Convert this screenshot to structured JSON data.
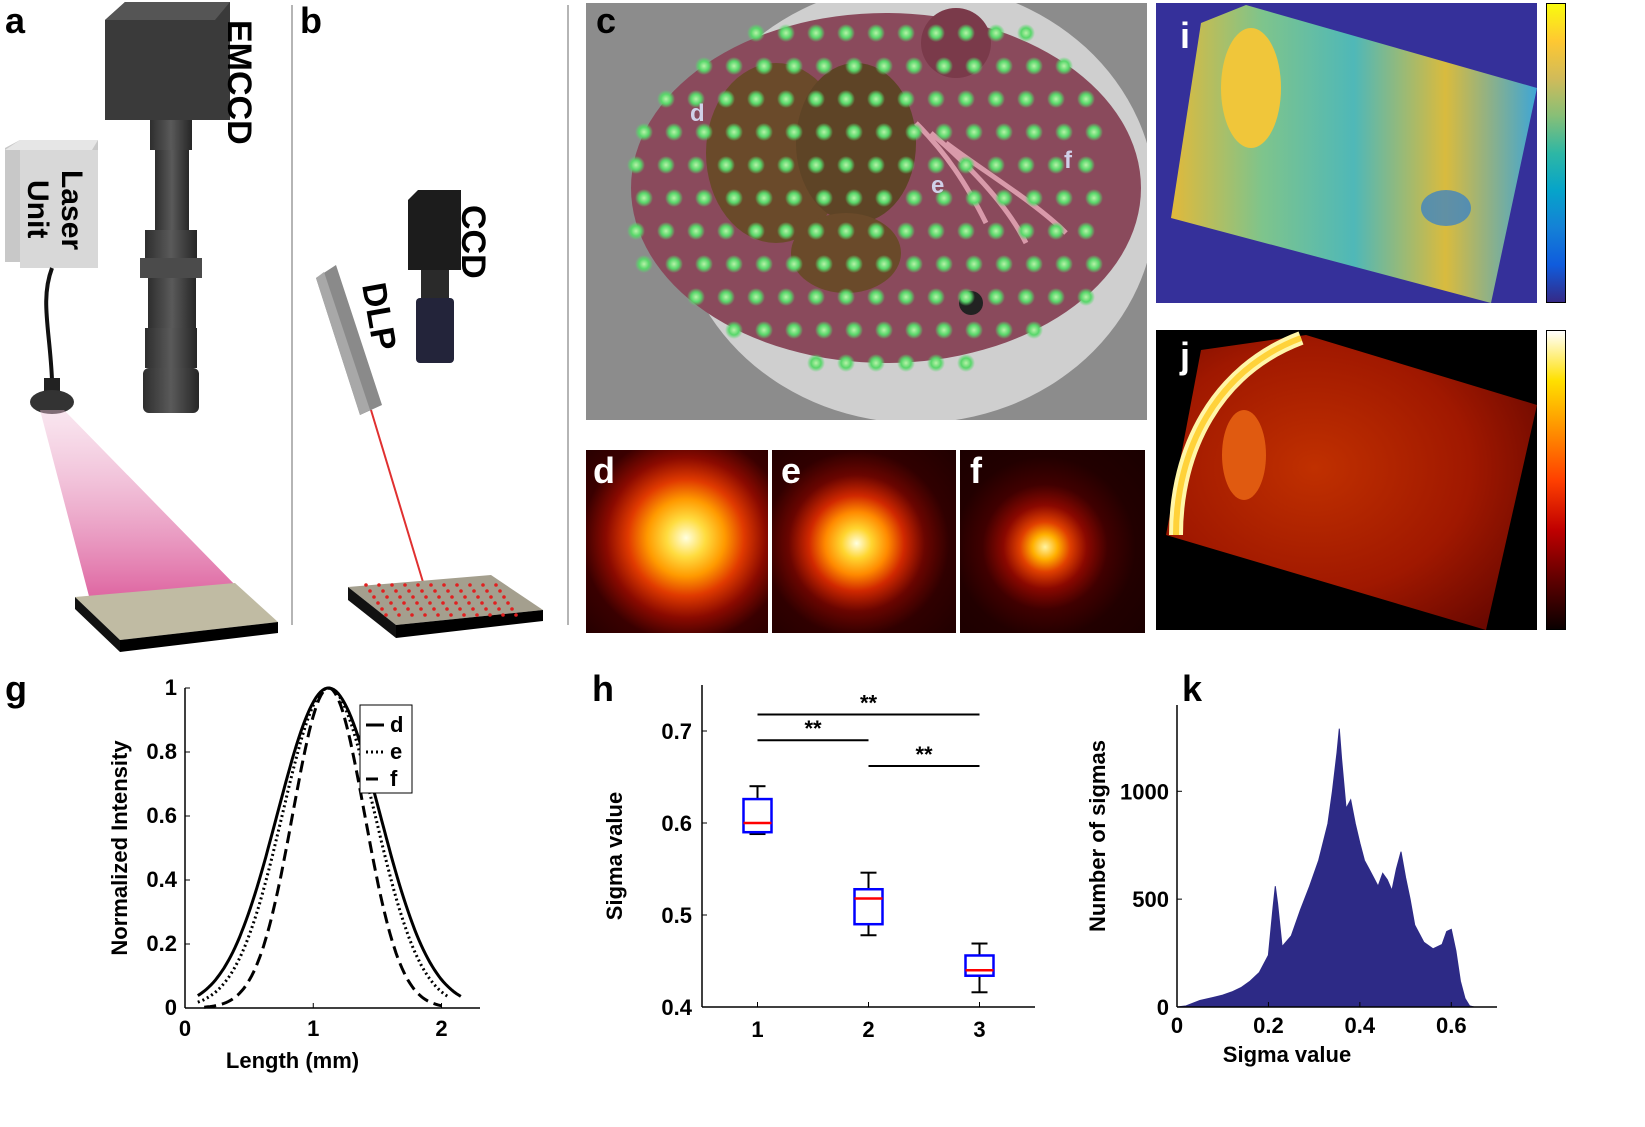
{
  "panels": {
    "a": "a",
    "b": "b",
    "c": "c",
    "d": "d",
    "e": "e",
    "f": "f",
    "g": "g",
    "h": "h",
    "i": "i",
    "j": "j",
    "k": "k"
  },
  "diagram_a": {
    "camera_label": "EMCCD",
    "laser_line1": "Laser",
    "laser_line2": "Unit"
  },
  "diagram_b": {
    "camera_label": "CCD",
    "projector_label": "DLP"
  },
  "photo_c": {
    "marker_d": "d",
    "marker_e": "e",
    "marker_f": "f"
  },
  "colors": {
    "histogram": "#2d2a86",
    "box_edge": "#0000ff",
    "median": "#ff0000"
  },
  "chart_data": [
    {
      "id": "g",
      "type": "line",
      "xlabel": "Length (mm)",
      "ylabel": "Normalized Intensity",
      "xlim": [
        0,
        2.3
      ],
      "ylim": [
        0,
        1
      ],
      "xticks": [
        "0",
        "1",
        "2"
      ],
      "yticks": [
        "0",
        "0.2",
        "0.4",
        "0.6",
        "0.8",
        "1"
      ],
      "legend": {
        "position": "top-right",
        "entries": [
          "d",
          "e",
          "f"
        ]
      },
      "series": [
        {
          "name": "d",
          "style": "solid",
          "center": 1.12,
          "sigma": 0.4,
          "x_range": [
            0.1,
            2.15
          ]
        },
        {
          "name": "e",
          "style": "dotted",
          "center": 1.12,
          "sigma": 0.36,
          "x_range": [
            0.1,
            2.05
          ]
        },
        {
          "name": "f",
          "style": "dashed",
          "center": 1.12,
          "sigma": 0.28,
          "x_range": [
            0.15,
            2.0
          ]
        }
      ]
    },
    {
      "id": "h",
      "type": "box",
      "ylabel": "Sigma value",
      "xlim": [
        0.5,
        3.5
      ],
      "ylim": [
        0.4,
        0.75
      ],
      "categories": [
        "1",
        "2",
        "3"
      ],
      "yticks": [
        "0.4",
        "0.5",
        "0.6",
        "0.7"
      ],
      "boxes": [
        {
          "category": "1",
          "min": 0.588,
          "q1": 0.59,
          "median": 0.6,
          "q3": 0.626,
          "max": 0.64
        },
        {
          "category": "2",
          "min": 0.478,
          "q1": 0.49,
          "median": 0.518,
          "q3": 0.528,
          "max": 0.546
        },
        {
          "category": "3",
          "min": 0.416,
          "q1": 0.434,
          "median": 0.44,
          "q3": 0.456,
          "max": 0.469
        }
      ],
      "significance": [
        {
          "from": "1",
          "to": "3",
          "label": "**",
          "y": 0.718
        },
        {
          "from": "1",
          "to": "2",
          "label": "**",
          "y": 0.69
        },
        {
          "from": "2",
          "to": "3",
          "label": "**",
          "y": 0.662
        }
      ]
    },
    {
      "id": "k",
      "type": "histogram",
      "xlabel": "Sigma value",
      "ylabel": "Number of sigmas",
      "xlim": [
        0,
        0.7
      ],
      "ylim": [
        0,
        1400
      ],
      "xticks": [
        "0",
        "0.2",
        "0.4",
        "0.6"
      ],
      "yticks": [
        "0",
        "500",
        "1000"
      ],
      "profile": [
        [
          0.0,
          0
        ],
        [
          0.02,
          5
        ],
        [
          0.05,
          30
        ],
        [
          0.08,
          45
        ],
        [
          0.1,
          55
        ],
        [
          0.12,
          70
        ],
        [
          0.14,
          90
        ],
        [
          0.16,
          120
        ],
        [
          0.18,
          160
        ],
        [
          0.2,
          240
        ],
        [
          0.21,
          460
        ],
        [
          0.215,
          560
        ],
        [
          0.22,
          480
        ],
        [
          0.23,
          280
        ],
        [
          0.25,
          330
        ],
        [
          0.27,
          450
        ],
        [
          0.29,
          560
        ],
        [
          0.31,
          680
        ],
        [
          0.33,
          850
        ],
        [
          0.34,
          1000
        ],
        [
          0.35,
          1180
        ],
        [
          0.355,
          1290
        ],
        [
          0.36,
          1150
        ],
        [
          0.37,
          920
        ],
        [
          0.38,
          960
        ],
        [
          0.39,
          850
        ],
        [
          0.4,
          760
        ],
        [
          0.41,
          680
        ],
        [
          0.42,
          640
        ],
        [
          0.43,
          600
        ],
        [
          0.44,
          560
        ],
        [
          0.45,
          620
        ],
        [
          0.46,
          590
        ],
        [
          0.47,
          540
        ],
        [
          0.48,
          640
        ],
        [
          0.49,
          720
        ],
        [
          0.5,
          600
        ],
        [
          0.51,
          500
        ],
        [
          0.52,
          380
        ],
        [
          0.54,
          300
        ],
        [
          0.56,
          270
        ],
        [
          0.58,
          290
        ],
        [
          0.59,
          350
        ],
        [
          0.6,
          360
        ],
        [
          0.61,
          260
        ],
        [
          0.62,
          120
        ],
        [
          0.63,
          40
        ],
        [
          0.64,
          5
        ],
        [
          0.65,
          0
        ]
      ]
    }
  ]
}
